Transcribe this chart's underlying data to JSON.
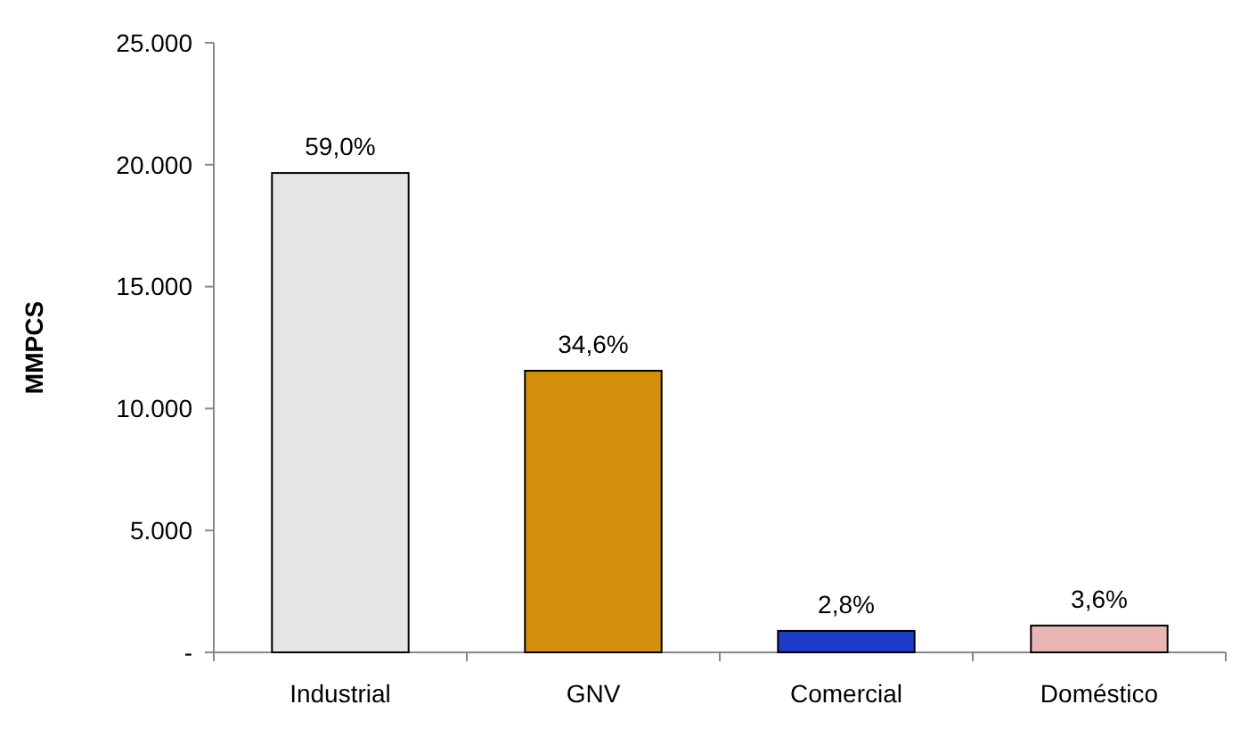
{
  "chart_data": {
    "type": "bar",
    "ylabel": "MMPCS",
    "categories": [
      "Industrial",
      "GNV",
      "Comercial",
      "Doméstico"
    ],
    "values": [
      19660,
      11550,
      880,
      1100
    ],
    "colors": [
      "#e6e6e6",
      "#d4900a",
      "#1a3cc8",
      "#e8b4b4"
    ],
    "annotations": [
      {
        "text": "59,0%",
        "x": "Industrial",
        "y": 19660
      },
      {
        "text": "34,6%",
        "x": "GNV",
        "y": 11550
      },
      {
        "text": "2,8%",
        "x": "Comercial",
        "y": 880
      },
      {
        "text": "3,6%",
        "x": "Doméstico",
        "y": 1100
      }
    ],
    "ylim": [
      0,
      25000
    ],
    "yticks": [
      {
        "value": 0,
        "label": "-"
      },
      {
        "value": 5000,
        "label": "5.000"
      },
      {
        "value": 10000,
        "label": "10.000"
      },
      {
        "value": 15000,
        "label": "15.000"
      },
      {
        "value": 20000,
        "label": "20.000"
      },
      {
        "value": 25000,
        "label": "25.000"
      }
    ],
    "grid": false
  }
}
